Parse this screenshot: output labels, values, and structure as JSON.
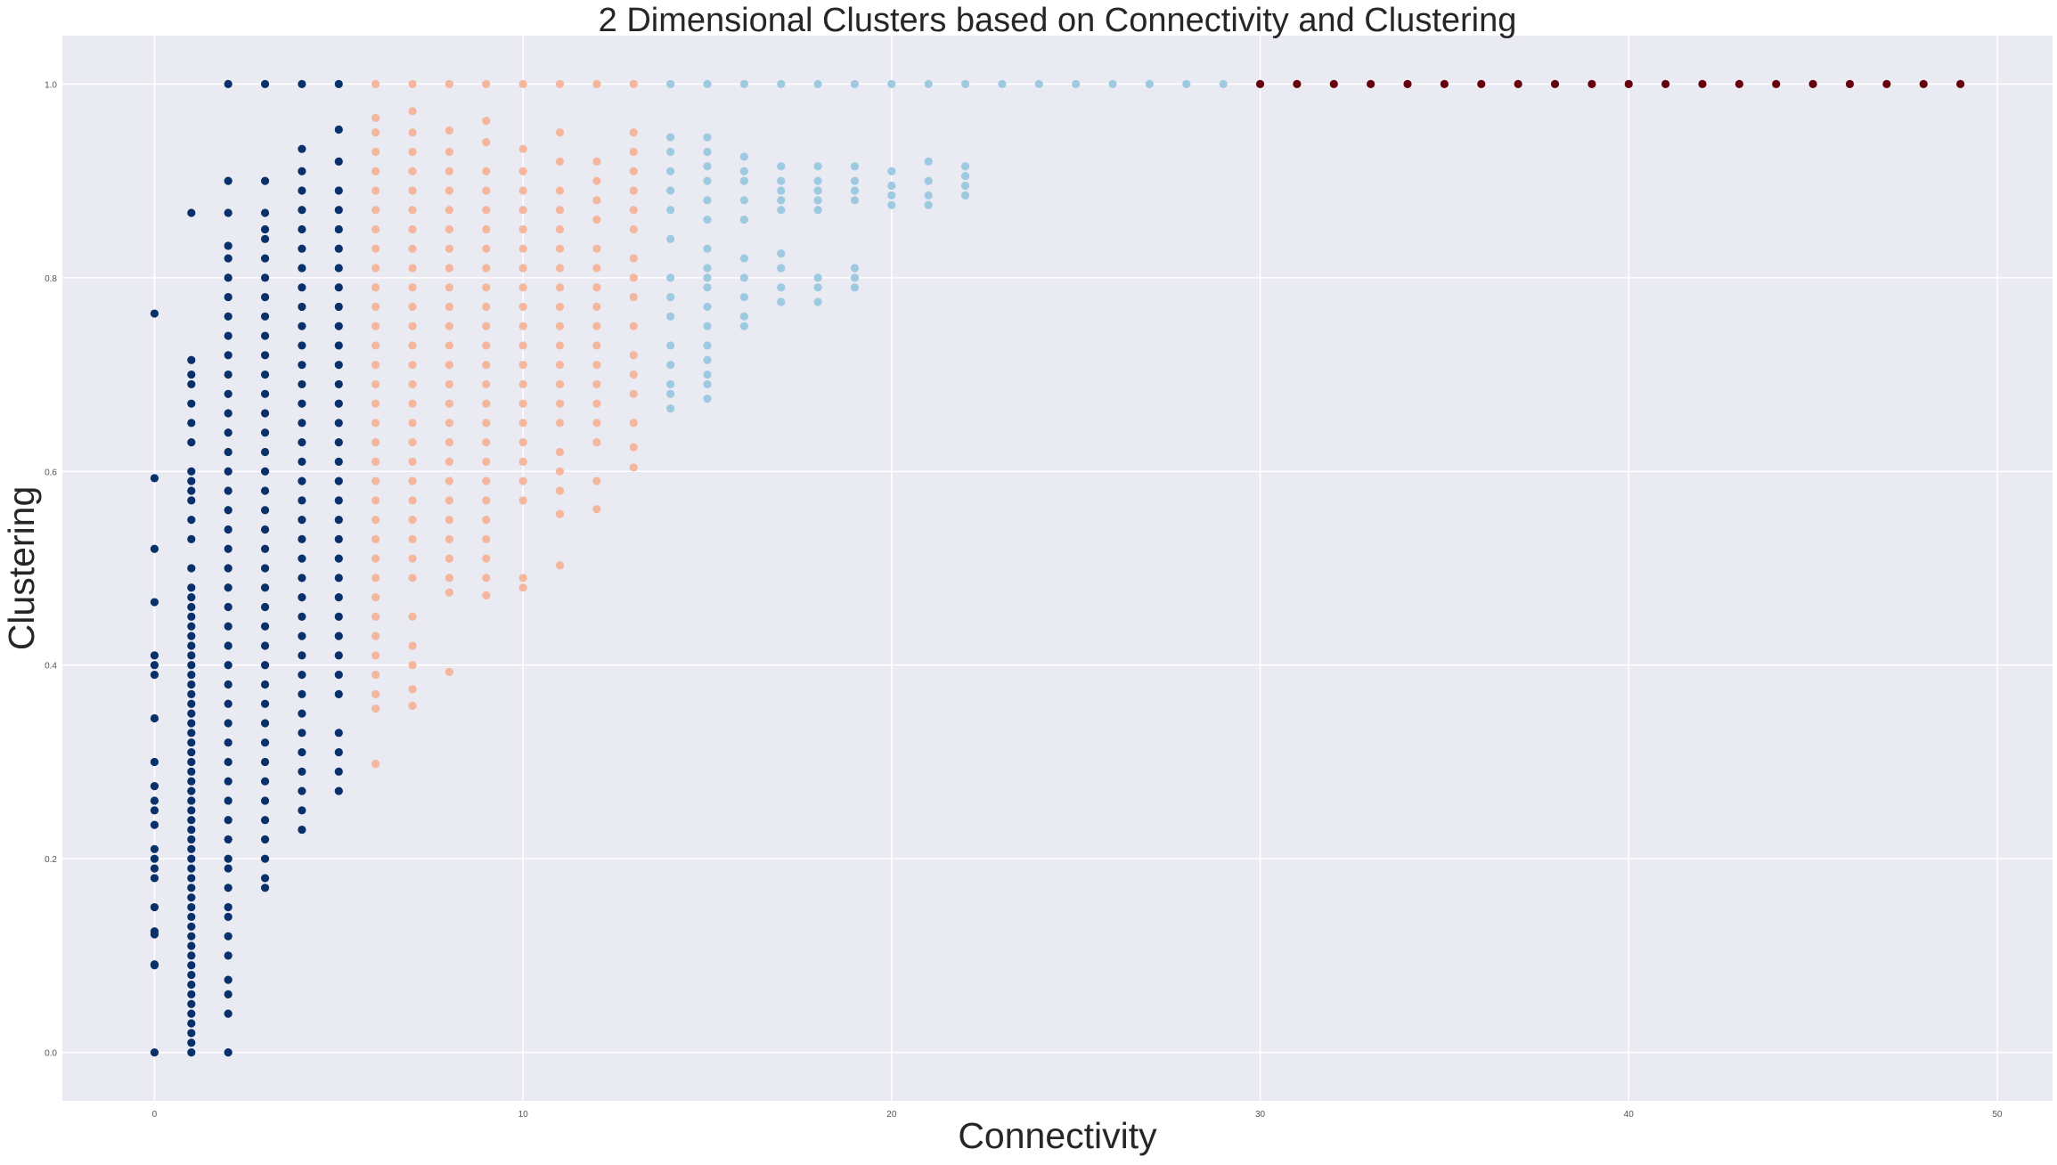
{
  "colors": {
    "background": "#ffffff",
    "plot_background": "#eaeaf2",
    "grid": "#ffffff",
    "text": "#262626",
    "tick_text": "#555555"
  },
  "chart_data": {
    "type": "scatter",
    "title": "2 Dimensional Clusters based on Connectivity and Clustering",
    "xlabel": "Connectivity",
    "ylabel": "Clustering",
    "xlim": [
      -2.5,
      51.5
    ],
    "ylim": [
      -0.05,
      1.05
    ],
    "grid": true,
    "legend": "none",
    "xticks": [
      0,
      10,
      20,
      30,
      40,
      50
    ],
    "xtick_labels": [
      "0",
      "10",
      "20",
      "30",
      "40",
      "50"
    ],
    "yticks": [
      0.0,
      0.2,
      0.4,
      0.6,
      0.8,
      1.0
    ],
    "ytick_labels": [
      "0.0",
      "0.2",
      "0.4",
      "0.6",
      "0.8",
      "1.0"
    ],
    "series": [
      {
        "color": "#08306b",
        "columns": [
          {
            "x": 0,
            "y": [
              0.0,
              0.09,
              0.091,
              0.122,
              0.125,
              0.15,
              0.18,
              0.19,
              0.2,
              0.21,
              0.235,
              0.25,
              0.26,
              0.275,
              0.3,
              0.345,
              0.39,
              0.4,
              0.41,
              0.465,
              0.52,
              0.593,
              0.763
            ]
          },
          {
            "x": 1,
            "y": [
              0.0,
              0.01,
              0.02,
              0.03,
              0.04,
              0.05,
              0.06,
              0.07,
              0.08,
              0.09,
              0.1,
              0.11,
              0.12,
              0.13,
              0.14,
              0.15,
              0.16,
              0.17,
              0.18,
              0.19,
              0.2,
              0.21,
              0.22,
              0.23,
              0.24,
              0.25,
              0.26,
              0.27,
              0.28,
              0.29,
              0.3,
              0.31,
              0.32,
              0.33,
              0.34,
              0.35,
              0.36,
              0.37,
              0.38,
              0.39,
              0.4,
              0.41,
              0.42,
              0.43,
              0.44,
              0.45,
              0.46,
              0.47,
              0.48,
              0.5,
              0.53,
              0.55,
              0.57,
              0.58,
              0.59,
              0.6,
              0.63,
              0.65,
              0.67,
              0.69,
              0.7,
              0.715,
              0.867
            ]
          },
          {
            "x": 2,
            "y": [
              0.0,
              0.04,
              0.06,
              0.075,
              0.1,
              0.12,
              0.14,
              0.15,
              0.17,
              0.19,
              0.2,
              0.22,
              0.24,
              0.26,
              0.28,
              0.3,
              0.32,
              0.34,
              0.36,
              0.38,
              0.4,
              0.42,
              0.44,
              0.46,
              0.48,
              0.5,
              0.52,
              0.54,
              0.56,
              0.58,
              0.6,
              0.62,
              0.64,
              0.66,
              0.68,
              0.7,
              0.72,
              0.74,
              0.76,
              0.78,
              0.8,
              0.82,
              0.833,
              0.867,
              0.9,
              1.0
            ]
          },
          {
            "x": 3,
            "y": [
              0.17,
              0.18,
              0.2,
              0.22,
              0.24,
              0.26,
              0.28,
              0.3,
              0.32,
              0.34,
              0.36,
              0.38,
              0.4,
              0.42,
              0.44,
              0.46,
              0.48,
              0.5,
              0.52,
              0.54,
              0.56,
              0.58,
              0.6,
              0.62,
              0.64,
              0.66,
              0.68,
              0.7,
              0.72,
              0.74,
              0.76,
              0.78,
              0.8,
              0.82,
              0.84,
              0.85,
              0.867,
              0.9,
              1.0
            ]
          },
          {
            "x": 4,
            "y": [
              0.23,
              0.25,
              0.27,
              0.29,
              0.31,
              0.33,
              0.35,
              0.37,
              0.39,
              0.41,
              0.43,
              0.45,
              0.47,
              0.49,
              0.51,
              0.53,
              0.55,
              0.57,
              0.59,
              0.61,
              0.63,
              0.65,
              0.67,
              0.69,
              0.71,
              0.73,
              0.75,
              0.77,
              0.79,
              0.81,
              0.83,
              0.85,
              0.87,
              0.89,
              0.91,
              0.933,
              1.0
            ]
          },
          {
            "x": 5,
            "y": [
              0.27,
              0.29,
              0.31,
              0.33,
              0.37,
              0.39,
              0.41,
              0.43,
              0.45,
              0.47,
              0.49,
              0.51,
              0.53,
              0.55,
              0.57,
              0.59,
              0.61,
              0.63,
              0.65,
              0.67,
              0.69,
              0.71,
              0.73,
              0.75,
              0.77,
              0.79,
              0.81,
              0.83,
              0.85,
              0.87,
              0.89,
              0.92,
              0.953,
              1.0
            ]
          }
        ]
      },
      {
        "color": "#f4b69c",
        "columns": [
          {
            "x": 6,
            "y": [
              0.298,
              0.355,
              0.37,
              0.39,
              0.41,
              0.43,
              0.45,
              0.47,
              0.49,
              0.51,
              0.53,
              0.55,
              0.57,
              0.59,
              0.61,
              0.63,
              0.65,
              0.67,
              0.69,
              0.71,
              0.73,
              0.75,
              0.77,
              0.79,
              0.81,
              0.83,
              0.85,
              0.87,
              0.89,
              0.91,
              0.93,
              0.95,
              0.965,
              1.0
            ]
          },
          {
            "x": 7,
            "y": [
              0.358,
              0.375,
              0.4,
              0.42,
              0.45,
              0.49,
              0.51,
              0.53,
              0.55,
              0.57,
              0.59,
              0.61,
              0.63,
              0.65,
              0.67,
              0.69,
              0.71,
              0.73,
              0.75,
              0.77,
              0.79,
              0.81,
              0.83,
              0.85,
              0.87,
              0.89,
              0.91,
              0.93,
              0.95,
              0.972,
              1.0
            ]
          },
          {
            "x": 8,
            "y": [
              0.393,
              0.475,
              0.49,
              0.51,
              0.53,
              0.55,
              0.57,
              0.59,
              0.61,
              0.63,
              0.65,
              0.67,
              0.69,
              0.71,
              0.73,
              0.75,
              0.77,
              0.79,
              0.81,
              0.83,
              0.85,
              0.87,
              0.89,
              0.91,
              0.93,
              0.952,
              1.0
            ]
          },
          {
            "x": 9,
            "y": [
              0.472,
              0.49,
              0.51,
              0.53,
              0.55,
              0.57,
              0.59,
              0.61,
              0.63,
              0.65,
              0.67,
              0.69,
              0.71,
              0.73,
              0.75,
              0.77,
              0.79,
              0.81,
              0.83,
              0.85,
              0.87,
              0.89,
              0.91,
              0.94,
              0.962,
              1.0
            ]
          },
          {
            "x": 10,
            "y": [
              0.48,
              0.49,
              0.57,
              0.59,
              0.61,
              0.63,
              0.65,
              0.67,
              0.69,
              0.71,
              0.73,
              0.75,
              0.77,
              0.79,
              0.81,
              0.83,
              0.85,
              0.87,
              0.89,
              0.91,
              0.933,
              1.0
            ]
          },
          {
            "x": 11,
            "y": [
              0.503,
              0.556,
              0.58,
              0.6,
              0.62,
              0.65,
              0.67,
              0.69,
              0.71,
              0.73,
              0.75,
              0.77,
              0.79,
              0.81,
              0.83,
              0.85,
              0.87,
              0.89,
              0.92,
              0.95,
              1.0
            ]
          },
          {
            "x": 12,
            "y": [
              0.561,
              0.59,
              0.63,
              0.65,
              0.67,
              0.69,
              0.71,
              0.73,
              0.75,
              0.77,
              0.79,
              0.81,
              0.83,
              0.86,
              0.88,
              0.9,
              0.92,
              1.0
            ]
          },
          {
            "x": 13,
            "y": [
              0.604,
              0.625,
              0.65,
              0.68,
              0.7,
              0.72,
              0.75,
              0.78,
              0.8,
              0.82,
              0.85,
              0.87,
              0.89,
              0.91,
              0.93,
              0.95,
              1.0
            ]
          }
        ]
      },
      {
        "color": "#9ecae1",
        "columns": [
          {
            "x": 14,
            "y": [
              0.665,
              0.68,
              0.69,
              0.71,
              0.73,
              0.76,
              0.78,
              0.8,
              0.84,
              0.87,
              0.89,
              0.91,
              0.93,
              0.945,
              1.0
            ]
          },
          {
            "x": 15,
            "y": [
              0.675,
              0.69,
              0.7,
              0.715,
              0.73,
              0.75,
              0.77,
              0.79,
              0.8,
              0.81,
              0.83,
              0.86,
              0.88,
              0.9,
              0.915,
              0.93,
              0.945,
              1.0
            ]
          },
          {
            "x": 16,
            "y": [
              0.75,
              0.76,
              0.78,
              0.8,
              0.82,
              0.86,
              0.88,
              0.9,
              0.91,
              0.925,
              1.0
            ]
          },
          {
            "x": 17,
            "y": [
              0.775,
              0.79,
              0.81,
              0.825,
              0.87,
              0.88,
              0.89,
              0.9,
              0.915,
              1.0
            ]
          },
          {
            "x": 18,
            "y": [
              0.775,
              0.79,
              0.8,
              0.87,
              0.88,
              0.89,
              0.9,
              0.915,
              1.0
            ]
          },
          {
            "x": 19,
            "y": [
              0.79,
              0.8,
              0.81,
              0.88,
              0.89,
              0.9,
              0.915,
              1.0
            ]
          },
          {
            "x": 20,
            "y": [
              0.875,
              0.885,
              0.895,
              0.91,
              1.0
            ]
          },
          {
            "x": 21,
            "y": [
              0.875,
              0.885,
              0.9,
              0.92,
              1.0
            ]
          },
          {
            "x": 22,
            "y": [
              0.885,
              0.895,
              0.905,
              0.915,
              1.0
            ]
          },
          {
            "x": 23,
            "y": [
              1.0
            ]
          },
          {
            "x": 24,
            "y": [
              1.0
            ]
          },
          {
            "x": 25,
            "y": [
              1.0
            ]
          },
          {
            "x": 26,
            "y": [
              1.0
            ]
          },
          {
            "x": 27,
            "y": [
              1.0
            ]
          },
          {
            "x": 28,
            "y": [
              1.0
            ]
          },
          {
            "x": 29,
            "y": [
              1.0
            ]
          }
        ]
      },
      {
        "color": "#67000d",
        "columns": [
          {
            "x": 30,
            "y": [
              1.0
            ]
          },
          {
            "x": 31,
            "y": [
              1.0
            ]
          },
          {
            "x": 32,
            "y": [
              1.0
            ]
          },
          {
            "x": 33,
            "y": [
              1.0
            ]
          },
          {
            "x": 34,
            "y": [
              1.0
            ]
          },
          {
            "x": 35,
            "y": [
              1.0
            ]
          },
          {
            "x": 36,
            "y": [
              1.0
            ]
          },
          {
            "x": 37,
            "y": [
              1.0
            ]
          },
          {
            "x": 38,
            "y": [
              1.0
            ]
          },
          {
            "x": 39,
            "y": [
              1.0
            ]
          },
          {
            "x": 40,
            "y": [
              1.0
            ]
          },
          {
            "x": 41,
            "y": [
              1.0
            ]
          },
          {
            "x": 42,
            "y": [
              1.0
            ]
          },
          {
            "x": 43,
            "y": [
              1.0
            ]
          },
          {
            "x": 44,
            "y": [
              1.0
            ]
          },
          {
            "x": 45,
            "y": [
              1.0
            ]
          },
          {
            "x": 46,
            "y": [
              1.0
            ]
          },
          {
            "x": 47,
            "y": [
              1.0
            ]
          },
          {
            "x": 48,
            "y": [
              1.0
            ]
          },
          {
            "x": 49,
            "y": [
              1.0
            ]
          }
        ]
      }
    ]
  }
}
